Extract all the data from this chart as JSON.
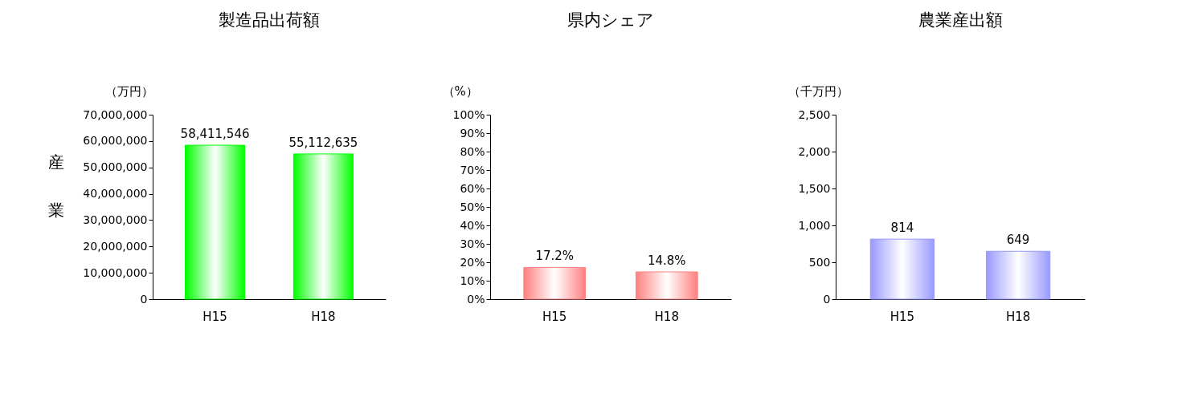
{
  "chart_data": [
    {
      "type": "bar",
      "title": "製造品出荷額",
      "ylabel": "（万円）",
      "categories": [
        "H15",
        "H18"
      ],
      "values": [
        58411546,
        55112635
      ],
      "value_labels": [
        "58,411,546",
        "55,112,635"
      ],
      "color": "#00ff00",
      "ylim": [
        0,
        70000000
      ],
      "yticks": [
        {
          "value": 0,
          "label": "0"
        },
        {
          "value": 10000000,
          "label": "10,000,000"
        },
        {
          "value": 20000000,
          "label": "20,000,000"
        },
        {
          "value": 30000000,
          "label": "30,000,000"
        },
        {
          "value": 40000000,
          "label": "40,000,000"
        },
        {
          "value": 50000000,
          "label": "50,000,000"
        },
        {
          "value": 60000000,
          "label": "60,000,000"
        },
        {
          "value": 70000000,
          "label": "70,000,000"
        }
      ],
      "grid": false,
      "annotations": [
        "産業"
      ]
    },
    {
      "type": "bar",
      "title": "県内シェア",
      "ylabel": "（%）",
      "categories": [
        "H15",
        "H18"
      ],
      "values": [
        17.2,
        14.8
      ],
      "value_labels": [
        "17.2%",
        "14.8%"
      ],
      "color": "#ff8080",
      "ylim": [
        0,
        100
      ],
      "yticks": [
        {
          "value": 0,
          "label": "0%"
        },
        {
          "value": 10,
          "label": "10%"
        },
        {
          "value": 20,
          "label": "20%"
        },
        {
          "value": 30,
          "label": "30%"
        },
        {
          "value": 40,
          "label": "40%"
        },
        {
          "value": 50,
          "label": "50%"
        },
        {
          "value": 60,
          "label": "60%"
        },
        {
          "value": 70,
          "label": "70%"
        },
        {
          "value": 80,
          "label": "80%"
        },
        {
          "value": 90,
          "label": "90%"
        },
        {
          "value": 100,
          "label": "100%"
        }
      ],
      "grid": false
    },
    {
      "type": "bar",
      "title": "農業産出額",
      "ylabel": "（千万円）",
      "categories": [
        "H15",
        "H18"
      ],
      "values": [
        814,
        649
      ],
      "value_labels": [
        "814",
        "649"
      ],
      "color": "#9999ff",
      "ylim": [
        0,
        2500
      ],
      "yticks": [
        0,
        500,
        {
          "value": 1000,
          "label": "1,000"
        },
        {
          "value": 1500,
          "label": "1,500"
        },
        {
          "value": 2000,
          "label": "2,000"
        },
        {
          "value": 2500,
          "label": "2,500"
        }
      ],
      "grid": false
    }
  ]
}
